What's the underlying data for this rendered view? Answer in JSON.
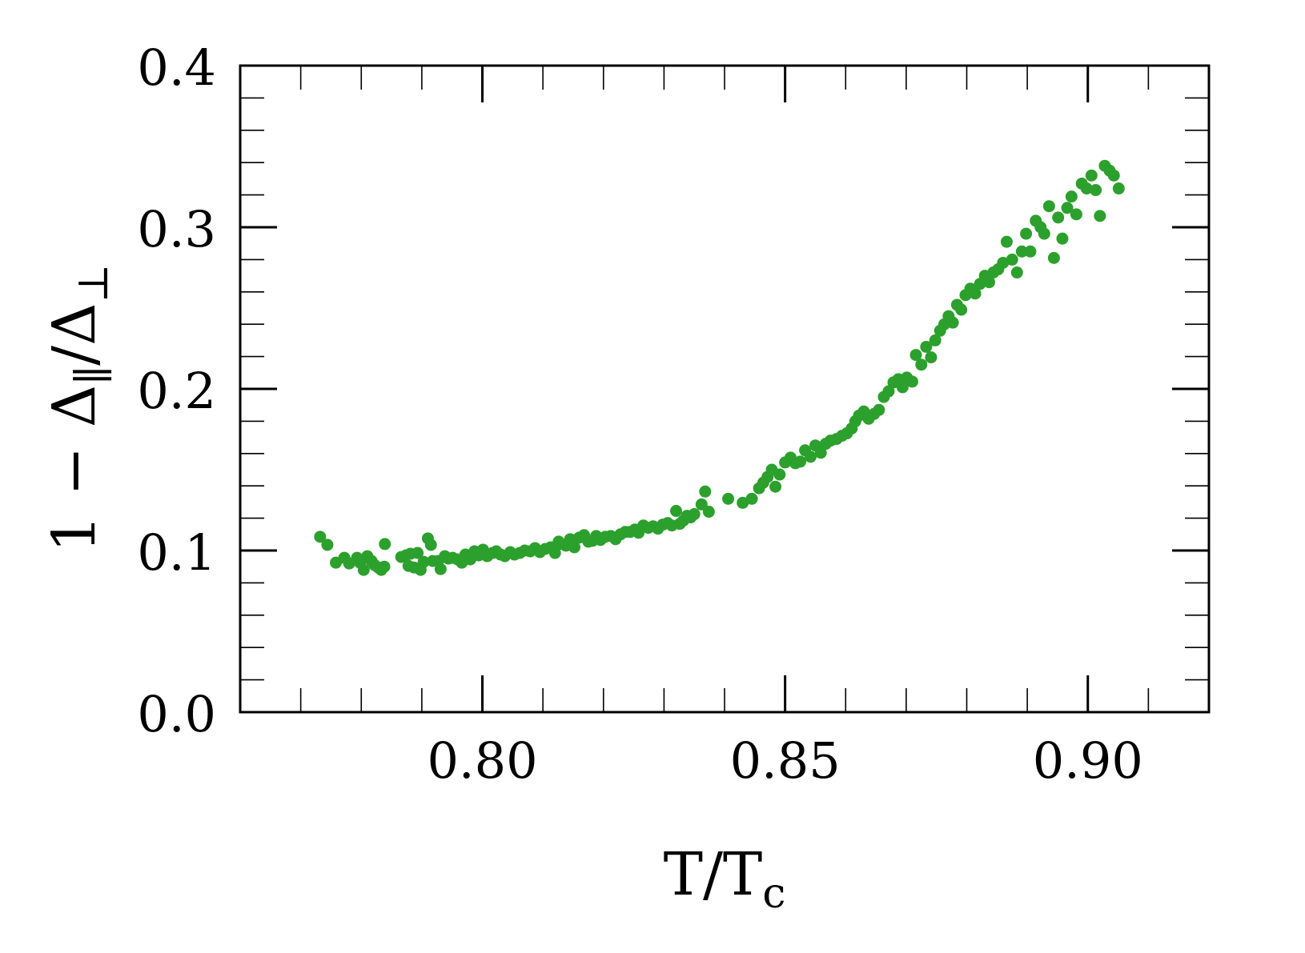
{
  "chart_data": {
    "type": "scatter",
    "title": "",
    "xlabel_main": "T/T",
    "xlabel_sub": "c",
    "ylabel_parts": {
      "prefix": "1 − Δ",
      "sub1": "∥",
      "mid": "/Δ",
      "sub2": "⊥"
    },
    "xlim": [
      0.76,
      0.92
    ],
    "ylim": [
      0.0,
      0.4
    ],
    "x_ticks": [
      {
        "value": 0.8,
        "label": "0.80"
      },
      {
        "value": 0.85,
        "label": "0.85"
      },
      {
        "value": 0.9,
        "label": "0.90"
      }
    ],
    "y_ticks": [
      {
        "value": 0.0,
        "label": "0.0"
      },
      {
        "value": 0.1,
        "label": "0.1"
      },
      {
        "value": 0.2,
        "label": "0.2"
      },
      {
        "value": 0.3,
        "label": "0.3"
      },
      {
        "value": 0.4,
        "label": "0.4"
      }
    ],
    "x_minor_step": 0.01,
    "y_minor_step": 0.02,
    "grid": false,
    "legend": "none",
    "series": [
      {
        "color": "#2ca02c",
        "points": [
          [
            0.7732,
            0.1085
          ],
          [
            0.7744,
            0.1035
          ],
          [
            0.7758,
            0.0925
          ],
          [
            0.7772,
            0.0955
          ],
          [
            0.778,
            0.092
          ],
          [
            0.7793,
            0.0955
          ],
          [
            0.7798,
            0.0925
          ],
          [
            0.7804,
            0.088
          ],
          [
            0.781,
            0.0965
          ],
          [
            0.7817,
            0.0935
          ],
          [
            0.7822,
            0.091
          ],
          [
            0.7828,
            0.0895
          ],
          [
            0.7833,
            0.088
          ],
          [
            0.7838,
            0.09
          ],
          [
            0.7839,
            0.104
          ],
          [
            0.7866,
            0.096
          ],
          [
            0.7874,
            0.097
          ],
          [
            0.7878,
            0.0905
          ],
          [
            0.7881,
            0.098
          ],
          [
            0.7887,
            0.0895
          ],
          [
            0.7893,
            0.0985
          ],
          [
            0.7898,
            0.088
          ],
          [
            0.7903,
            0.093
          ],
          [
            0.791,
            0.1075
          ],
          [
            0.7915,
            0.1035
          ],
          [
            0.7918,
            0.0935
          ],
          [
            0.7927,
            0.0935
          ],
          [
            0.7931,
            0.0885
          ],
          [
            0.7938,
            0.0965
          ],
          [
            0.7944,
            0.095
          ],
          [
            0.7951,
            0.0955
          ],
          [
            0.7959,
            0.0945
          ],
          [
            0.7966,
            0.0925
          ],
          [
            0.7972,
            0.0975
          ],
          [
            0.798,
            0.0945
          ],
          [
            0.7987,
            0.0995
          ],
          [
            0.7994,
            0.097
          ],
          [
            0.8001,
            0.1005
          ],
          [
            0.8008,
            0.0965
          ],
          [
            0.8017,
            0.0985
          ],
          [
            0.8023,
            0.0995
          ],
          [
            0.803,
            0.0975
          ],
          [
            0.8037,
            0.0965
          ],
          [
            0.8046,
            0.099
          ],
          [
            0.8053,
            0.0975
          ],
          [
            0.8062,
            0.0985
          ],
          [
            0.807,
            0.1
          ],
          [
            0.8079,
            0.0995
          ],
          [
            0.8087,
            0.1015
          ],
          [
            0.8095,
            0.099
          ],
          [
            0.8104,
            0.101
          ],
          [
            0.8113,
            0.102
          ],
          [
            0.812,
            0.0985
          ],
          [
            0.8126,
            0.1055
          ],
          [
            0.8131,
            0.104
          ],
          [
            0.8138,
            0.103
          ],
          [
            0.8145,
            0.107
          ],
          [
            0.8152,
            0.102
          ],
          [
            0.816,
            0.108
          ],
          [
            0.8168,
            0.1095
          ],
          [
            0.8175,
            0.1055
          ],
          [
            0.8182,
            0.106
          ],
          [
            0.8188,
            0.109
          ],
          [
            0.8195,
            0.1065
          ],
          [
            0.8203,
            0.1085
          ],
          [
            0.8212,
            0.109
          ],
          [
            0.822,
            0.107
          ],
          [
            0.8228,
            0.11
          ],
          [
            0.8236,
            0.1115
          ],
          [
            0.8244,
            0.1115
          ],
          [
            0.8252,
            0.113
          ],
          [
            0.8258,
            0.111
          ],
          [
            0.8266,
            0.1155
          ],
          [
            0.8274,
            0.114
          ],
          [
            0.8282,
            0.115
          ],
          [
            0.829,
            0.1135
          ],
          [
            0.8298,
            0.116
          ],
          [
            0.8306,
            0.117
          ],
          [
            0.8313,
            0.1155
          ],
          [
            0.832,
            0.1245
          ],
          [
            0.8326,
            0.1165
          ],
          [
            0.8332,
            0.1185
          ],
          [
            0.8338,
            0.1215
          ],
          [
            0.8344,
            0.1205
          ],
          [
            0.835,
            0.1225
          ],
          [
            0.8362,
            0.1285
          ],
          [
            0.8368,
            0.1365
          ],
          [
            0.8374,
            0.124
          ],
          [
            0.8406,
            0.132
          ],
          [
            0.843,
            0.1295
          ],
          [
            0.8445,
            0.132
          ],
          [
            0.8457,
            0.1385
          ],
          [
            0.8464,
            0.142
          ],
          [
            0.8471,
            0.1455
          ],
          [
            0.8478,
            0.15
          ],
          [
            0.8484,
            0.1395
          ],
          [
            0.8491,
            0.147
          ],
          [
            0.85,
            0.1545
          ],
          [
            0.8509,
            0.1575
          ],
          [
            0.8517,
            0.154
          ],
          [
            0.8525,
            0.155
          ],
          [
            0.8533,
            0.162
          ],
          [
            0.8542,
            0.158
          ],
          [
            0.855,
            0.165
          ],
          [
            0.8559,
            0.1605
          ],
          [
            0.8567,
            0.166
          ],
          [
            0.8575,
            0.168
          ],
          [
            0.8585,
            0.169
          ],
          [
            0.8594,
            0.171
          ],
          [
            0.8602,
            0.1725
          ],
          [
            0.861,
            0.1755
          ],
          [
            0.8616,
            0.18
          ],
          [
            0.8622,
            0.1835
          ],
          [
            0.863,
            0.186
          ],
          [
            0.8638,
            0.1815
          ],
          [
            0.8647,
            0.1845
          ],
          [
            0.8655,
            0.187
          ],
          [
            0.8663,
            0.195
          ],
          [
            0.8671,
            0.1985
          ],
          [
            0.8679,
            0.204
          ],
          [
            0.8687,
            0.206
          ],
          [
            0.8694,
            0.201
          ],
          [
            0.8701,
            0.207
          ],
          [
            0.871,
            0.2045
          ],
          [
            0.8716,
            0.221
          ],
          [
            0.8725,
            0.215
          ],
          [
            0.8733,
            0.226
          ],
          [
            0.8741,
            0.2195
          ],
          [
            0.8748,
            0.23
          ],
          [
            0.8756,
            0.236
          ],
          [
            0.8763,
            0.24
          ],
          [
            0.877,
            0.245
          ],
          [
            0.8777,
            0.241
          ],
          [
            0.8784,
            0.252
          ],
          [
            0.8791,
            0.249
          ],
          [
            0.8798,
            0.258
          ],
          [
            0.8806,
            0.262
          ],
          [
            0.8814,
            0.259
          ],
          [
            0.8822,
            0.265
          ],
          [
            0.883,
            0.27
          ],
          [
            0.8837,
            0.266
          ],
          [
            0.8844,
            0.272
          ],
          [
            0.8852,
            0.274
          ],
          [
            0.886,
            0.278
          ],
          [
            0.8866,
            0.291
          ],
          [
            0.8875,
            0.28
          ],
          [
            0.8883,
            0.272
          ],
          [
            0.8891,
            0.285
          ],
          [
            0.8898,
            0.296
          ],
          [
            0.8905,
            0.285
          ],
          [
            0.8914,
            0.304
          ],
          [
            0.8922,
            0.3
          ],
          [
            0.8928,
            0.296
          ],
          [
            0.8936,
            0.313
          ],
          [
            0.8944,
            0.281
          ],
          [
            0.8951,
            0.306
          ],
          [
            0.8958,
            0.293
          ],
          [
            0.8966,
            0.312
          ],
          [
            0.8973,
            0.319
          ],
          [
            0.8981,
            0.308
          ],
          [
            0.899,
            0.327
          ],
          [
            0.8998,
            0.324
          ],
          [
            0.9006,
            0.332
          ],
          [
            0.9013,
            0.323
          ],
          [
            0.902,
            0.307
          ],
          [
            0.9028,
            0.338
          ],
          [
            0.9036,
            0.335
          ],
          [
            0.9043,
            0.332
          ],
          [
            0.9051,
            0.324
          ]
        ]
      }
    ]
  }
}
